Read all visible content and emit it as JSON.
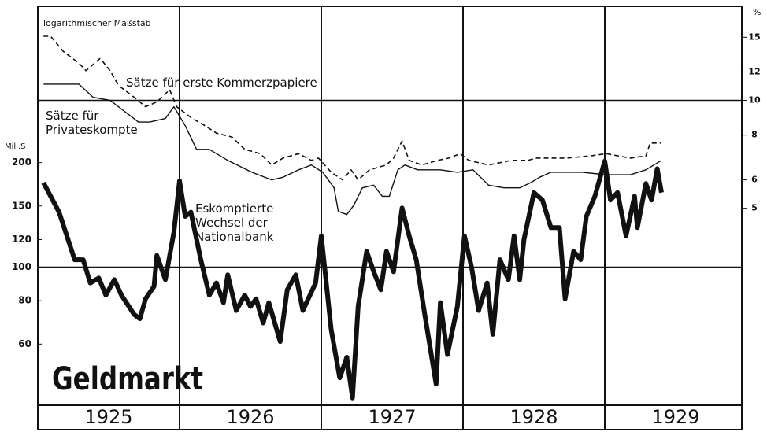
{
  "chart_data": {
    "type": "line",
    "title": "Geldmarkt",
    "subtitle": "logarithmischer Maßstab",
    "ylabel": "Mill.S",
    "y2label": "%",
    "log_scale": true,
    "xlim": [
      1925,
      1930
    ],
    "xticks": [
      {
        "value": 1925.5,
        "label": "1925"
      },
      {
        "value": 1926.5,
        "label": "1926"
      },
      {
        "value": 1927.5,
        "label": "1927"
      },
      {
        "value": 1928.5,
        "label": "1928"
      },
      {
        "value": 1929.5,
        "label": "1929"
      }
    ],
    "year_lines": [
      1926,
      1927,
      1928,
      1929
    ],
    "ylim": [
      40,
      564
    ],
    "yticks": [
      60,
      80,
      100,
      120,
      150,
      200
    ],
    "hlines": [
      100
    ],
    "y2lim": [
      1.41,
      18.3
    ],
    "y2ticks": [
      5,
      6,
      8,
      10,
      12,
      15
    ],
    "h2lines": [
      10
    ],
    "series": [
      {
        "name": "Sätze für erste Kommerzpapiere",
        "color": "#111111",
        "style": "dashed",
        "axis": "y2",
        "x": [
          1925.04,
          1925.09,
          1925.18,
          1925.29,
          1925.34,
          1925.44,
          1925.51,
          1925.57,
          1925.68,
          1925.76,
          1925.84,
          1925.93,
          1925.98,
          1926.09,
          1926.18,
          1926.26,
          1926.37,
          1926.46,
          1926.57,
          1926.65,
          1926.73,
          1926.84,
          1926.93,
          1926.98,
          1927.07,
          1927.15,
          1927.21,
          1927.26,
          1927.34,
          1927.46,
          1927.51,
          1927.57,
          1927.62,
          1927.71,
          1927.82,
          1927.9,
          1927.98,
          1928.04,
          1928.18,
          1928.34,
          1928.46,
          1928.51,
          1928.62,
          1928.73,
          1928.9,
          1929.01,
          1929.18,
          1929.29,
          1929.32,
          1929.4
        ],
        "values": [
          15.1,
          15.1,
          13.7,
          12.7,
          12.1,
          13.1,
          12.1,
          11.0,
          10.2,
          9.6,
          9.9,
          10.7,
          9.6,
          8.9,
          8.5,
          8.1,
          7.9,
          7.3,
          7.1,
          6.6,
          6.9,
          7.1,
          6.8,
          6.9,
          6.3,
          6.0,
          6.4,
          6.0,
          6.4,
          6.6,
          6.9,
          7.7,
          6.8,
          6.6,
          6.8,
          6.9,
          7.1,
          6.8,
          6.6,
          6.8,
          6.8,
          6.9,
          6.9,
          6.9,
          7.0,
          7.1,
          6.9,
          7.0,
          7.6,
          7.6
        ]
      },
      {
        "name": "Sätze für Privateskompte",
        "color": "#111111",
        "style": "solid",
        "axis": "y2",
        "x": [
          1925.04,
          1925.29,
          1925.39,
          1925.51,
          1925.71,
          1925.79,
          1925.9,
          1925.96,
          1926.04,
          1926.12,
          1926.21,
          1926.34,
          1926.51,
          1926.65,
          1926.73,
          1926.84,
          1926.93,
          1927.01,
          1927.09,
          1927.12,
          1927.18,
          1927.23,
          1927.29,
          1927.37,
          1927.43,
          1927.48,
          1927.54,
          1927.59,
          1927.68,
          1927.84,
          1927.96,
          1928.07,
          1928.18,
          1928.29,
          1928.4,
          1928.48,
          1928.54,
          1928.62,
          1928.84,
          1929.01,
          1929.18,
          1929.29,
          1929.4
        ],
        "values": [
          11.1,
          11.1,
          10.2,
          10.0,
          8.7,
          8.7,
          8.9,
          9.6,
          8.5,
          7.3,
          7.3,
          6.8,
          6.3,
          6.0,
          6.1,
          6.4,
          6.6,
          6.3,
          5.7,
          4.9,
          4.8,
          5.1,
          5.7,
          5.8,
          5.4,
          5.4,
          6.4,
          6.6,
          6.4,
          6.4,
          6.3,
          6.4,
          5.8,
          5.7,
          5.7,
          5.9,
          6.1,
          6.3,
          6.3,
          6.2,
          6.2,
          6.4,
          6.8
        ]
      },
      {
        "name": "Eskomptierte Wechsel der Nationalbank",
        "color": "#111111",
        "style": "bold",
        "axis": "y",
        "x": [
          1925.04,
          1925.15,
          1925.26,
          1925.32,
          1925.37,
          1925.43,
          1925.48,
          1925.54,
          1925.59,
          1925.68,
          1925.72,
          1925.76,
          1925.82,
          1925.84,
          1925.9,
          1925.96,
          1926.0,
          1926.04,
          1926.08,
          1926.15,
          1926.21,
          1926.26,
          1926.31,
          1926.34,
          1926.4,
          1926.46,
          1926.5,
          1926.54,
          1926.59,
          1926.63,
          1926.71,
          1926.76,
          1926.82,
          1926.87,
          1926.96,
          1927.0,
          1927.07,
          1927.13,
          1927.18,
          1927.22,
          1927.26,
          1927.32,
          1927.37,
          1927.42,
          1927.46,
          1927.51,
          1927.57,
          1927.62,
          1927.67,
          1927.73,
          1927.81,
          1927.84,
          1927.89,
          1927.96,
          1928.01,
          1928.06,
          1928.11,
          1928.17,
          1928.21,
          1928.26,
          1928.32,
          1928.36,
          1928.4,
          1928.43,
          1928.5,
          1928.56,
          1928.62,
          1928.68,
          1928.72,
          1928.78,
          1928.83,
          1928.87,
          1928.93,
          1929.0,
          1929.04,
          1929.09,
          1929.15,
          1929.21,
          1929.23,
          1929.29,
          1929.33,
          1929.37,
          1929.4
        ],
        "values": [
          175,
          144,
          105,
          105,
          90,
          93,
          83,
          92,
          83,
          73,
          71,
          81,
          88,
          108,
          92,
          126,
          177,
          140,
          144,
          105,
          83,
          90,
          79,
          95,
          75,
          83,
          77,
          81,
          69,
          79,
          61,
          86,
          95,
          75,
          90,
          123,
          66,
          48,
          55,
          42,
          77,
          111,
          97,
          86,
          111,
          97,
          148,
          123,
          105,
          73,
          46,
          79,
          56,
          77,
          123,
          100,
          75,
          90,
          64,
          105,
          92,
          123,
          92,
          120,
          164,
          156,
          130,
          130,
          81,
          111,
          105,
          140,
          160,
          202,
          156,
          164,
          123,
          160,
          130,
          174,
          156,
          192,
          164
        ]
      }
    ]
  }
}
